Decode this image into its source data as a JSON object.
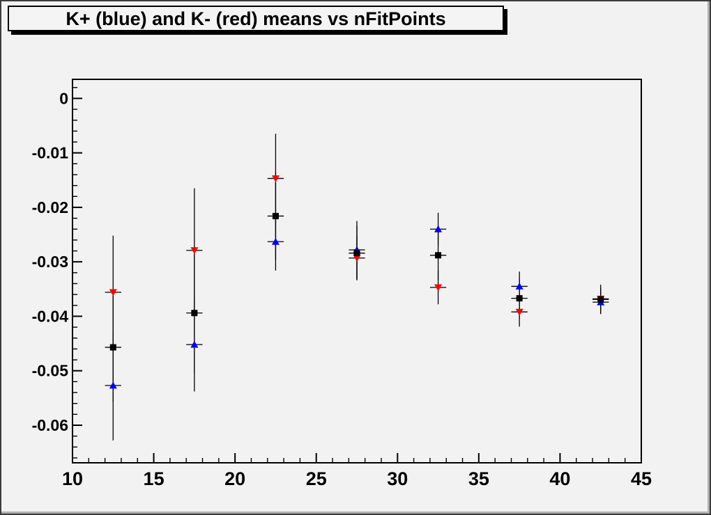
{
  "window": {
    "title": "K+ (blue) and K- (red) means vs nFitPoints"
  },
  "colors": {
    "canvas_bg": "#f2f2f2",
    "frame_line": "#000000",
    "kplus_blue": "#0000ff",
    "kminus_red": "#ff0000",
    "black_marker": "#000000"
  },
  "chart_data": {
    "type": "scatter",
    "title": "K+ (blue) and K- (red) means vs nFitPoints",
    "xlabel": "",
    "ylabel": "",
    "xlim": [
      10,
      45
    ],
    "ylim": [
      -0.0669,
      0.0035
    ],
    "grid": false,
    "legend": "none (colors described in title)",
    "x_major_ticks": [
      10,
      15,
      20,
      25,
      30,
      35,
      40,
      45
    ],
    "x_major_labels": [
      "10",
      "15",
      "20",
      "25",
      "30",
      "35",
      "40",
      "45"
    ],
    "x_minor_step": 1,
    "y_major_ticks": [
      0,
      -0.01,
      -0.02,
      -0.03,
      -0.04,
      -0.05,
      -0.06
    ],
    "y_major_labels": [
      "0",
      "-0.01",
      "-0.02",
      "-0.03",
      "-0.04",
      "-0.05",
      "-0.06"
    ],
    "y_minor_step": 0.002,
    "x": [
      12.5,
      17.5,
      22.5,
      27.5,
      32.5,
      37.5,
      42.5
    ],
    "xerr": 0.5,
    "series": [
      {
        "name": "K- (red)",
        "marker": "triangle-down",
        "color": "#ff0000",
        "y": [
          -0.0356,
          -0.0279,
          -0.0147,
          -0.0293,
          -0.0347,
          -0.0392,
          -0.0368
        ],
        "yerr": [
          0.0104,
          0.0114,
          0.0082,
          0.004,
          0.0031,
          0.0027,
          0.002
        ]
      },
      {
        "name": "K+ (blue)",
        "marker": "triangle-up",
        "color": "#0000ff",
        "y": [
          -0.0527,
          -0.0452,
          -0.0263,
          -0.0278,
          -0.024,
          -0.0345,
          -0.0374
        ],
        "yerr": [
          0.0101,
          0.0086,
          0.0053,
          0.0053,
          0.003,
          0.0027,
          0.002
        ]
      },
      {
        "name": "black squares",
        "marker": "square",
        "color": "#000000",
        "y": [
          -0.0457,
          -0.0394,
          -0.0216,
          -0.0284,
          -0.0288,
          -0.0367,
          -0.0369
        ],
        "yerr": [
          0.01,
          0.011,
          0.008,
          0.005,
          0.0045,
          0.0035,
          0.0027
        ]
      }
    ]
  }
}
